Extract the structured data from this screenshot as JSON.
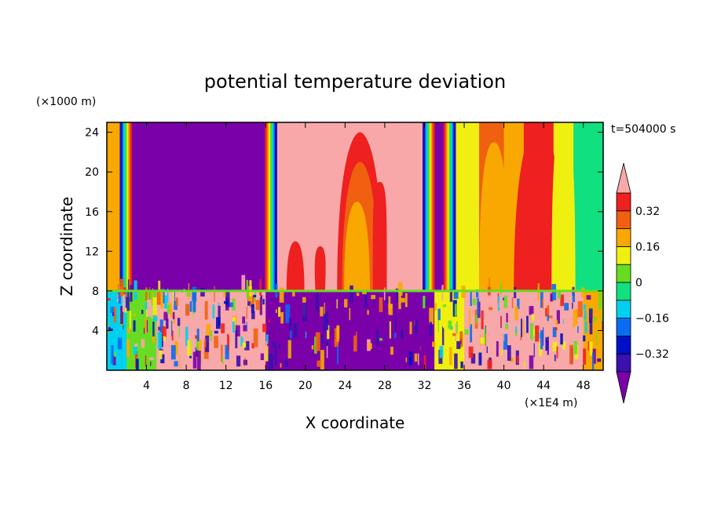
{
  "chart_data": {
    "type": "heatmap",
    "title": "potential temperature deviation",
    "xlabel": "X coordinate",
    "ylabel": "Z coordinate",
    "x_unit": "(×1E4 m)",
    "y_unit": "(×1000 m)",
    "time_label": "t=504000 s",
    "xlim": [
      0,
      50
    ],
    "ylim": [
      0,
      25
    ],
    "x_ticks": [
      4,
      8,
      12,
      16,
      20,
      24,
      28,
      32,
      36,
      40,
      44,
      48
    ],
    "y_ticks": [
      4,
      8,
      12,
      16,
      20,
      24
    ],
    "colorbar": {
      "levels": [
        -0.4,
        -0.32,
        -0.24,
        -0.16,
        -0.08,
        0,
        0.08,
        0.16,
        0.24,
        0.32,
        0.4
      ],
      "tick_values": [
        -0.32,
        -0.16,
        0,
        0.16,
        0.32
      ],
      "tick_labels": [
        "−0.32",
        "−0.16",
        "0",
        "0.16",
        "0.32"
      ],
      "colors": [
        "#7a00aa",
        "#3a10b0",
        "#0010c8",
        "#0a6cf0",
        "#00d0f0",
        "#10e080",
        "#66dd22",
        "#f0f010",
        "#f8a800",
        "#f06010",
        "#ee2020",
        "#f8a8a8"
      ]
    },
    "upper_layer_columns": [
      {
        "x_from": 0,
        "x_to": 1.5,
        "level": 0.18
      },
      {
        "x_from": 1.5,
        "x_to": 2.5,
        "level": 0.02
      },
      {
        "x_from": 2.5,
        "x_to": 17,
        "level": -0.45
      },
      {
        "x_from": 17,
        "x_to": 33,
        "level": 0.45
      },
      {
        "x_from": 33,
        "x_to": 35,
        "level": -0.45
      },
      {
        "x_from": 35,
        "x_to": 37.5,
        "level": 0.1
      },
      {
        "x_from": 37.5,
        "x_to": 40,
        "level": 0.26
      },
      {
        "x_from": 40,
        "x_to": 42,
        "level": 0.2
      },
      {
        "x_from": 42,
        "x_to": 45,
        "level": 0.34
      },
      {
        "x_from": 45,
        "x_to": 47,
        "level": 0.14
      },
      {
        "x_from": 47,
        "x_to": 50,
        "level": -0.04
      }
    ],
    "lower_layer_regions": [
      {
        "x_from": 0,
        "x_to": 2,
        "level": -0.1
      },
      {
        "x_from": 2,
        "x_to": 5,
        "level": 0.05
      },
      {
        "x_from": 5,
        "x_to": 16,
        "level": 0.45
      },
      {
        "x_from": 16,
        "x_to": 33,
        "level": -0.45
      },
      {
        "x_from": 33,
        "x_to": 36,
        "level": 0.1
      },
      {
        "x_from": 36,
        "x_to": 48,
        "level": 0.45
      },
      {
        "x_from": 48,
        "x_to": 50,
        "level": 0.2
      }
    ],
    "tropopause_height": 8
  }
}
